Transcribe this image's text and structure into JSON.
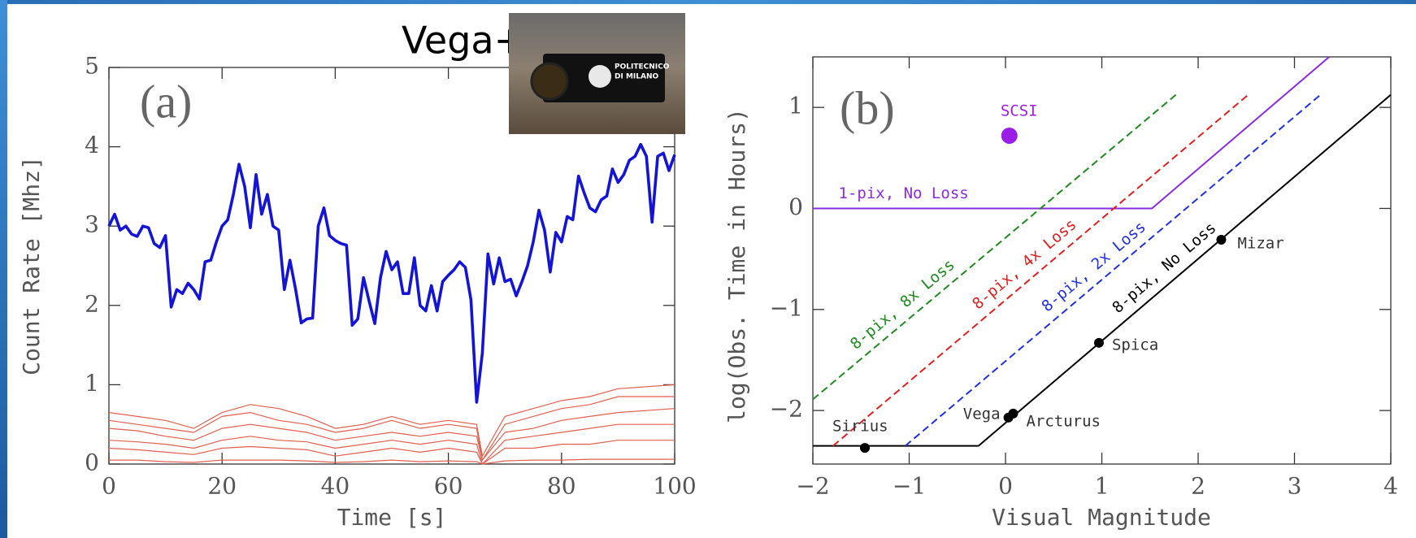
{
  "chart_data": [
    {
      "type": "line",
      "title": "Vega+",
      "panel_label": "(a)",
      "inset_text": [
        "POLITECNICO",
        "DI MILANO"
      ],
      "x_label": "Time   [s]",
      "y_label": "Count Rate   [Mhz]",
      "xlim": [
        0,
        100
      ],
      "ylim": [
        0,
        5
      ],
      "xticks": [
        0,
        20,
        40,
        60,
        80,
        100
      ],
      "yticks": [
        0,
        1,
        2,
        3,
        4,
        5
      ],
      "series": [
        {
          "color": "#1414d8",
          "x": [
            0,
            1,
            2,
            3,
            4,
            5,
            6,
            7,
            8,
            9,
            10,
            11,
            12,
            13,
            14,
            15,
            16,
            17,
            18,
            19,
            20,
            21,
            22,
            23,
            24,
            25,
            26,
            27,
            28,
            29,
            30,
            31,
            32,
            33,
            34,
            35,
            36,
            37,
            38,
            39,
            40,
            41,
            42,
            43,
            44,
            45,
            46,
            47,
            48,
            49,
            50,
            51,
            52,
            53,
            54,
            55,
            56,
            57,
            58,
            59,
            60,
            61,
            62,
            63,
            64,
            65,
            66,
            67,
            68,
            69,
            70,
            71,
            72,
            73,
            74,
            75,
            76,
            77,
            78,
            79,
            80,
            81,
            82,
            83,
            84,
            85,
            86,
            87,
            88,
            89,
            90,
            91,
            92,
            93,
            94,
            95,
            96,
            97,
            98,
            99,
            100
          ],
          "values": [
            3.0,
            3.15,
            2.95,
            3.0,
            2.9,
            2.87,
            3.0,
            2.98,
            2.78,
            2.73,
            2.88,
            1.98,
            2.2,
            2.15,
            2.28,
            2.2,
            2.08,
            2.55,
            2.57,
            2.8,
            3.0,
            3.08,
            3.4,
            3.78,
            3.5,
            2.98,
            3.65,
            3.15,
            3.4,
            3.0,
            2.95,
            2.2,
            2.57,
            2.2,
            1.78,
            1.83,
            1.84,
            3.0,
            3.23,
            2.88,
            2.82,
            2.78,
            2.76,
            1.75,
            1.83,
            2.35,
            2.05,
            1.77,
            2.35,
            2.68,
            2.45,
            2.55,
            2.15,
            2.15,
            2.6,
            2.0,
            1.93,
            2.25,
            1.93,
            2.3,
            2.38,
            2.45,
            2.55,
            2.48,
            2.07,
            0.78,
            1.4,
            2.65,
            2.27,
            2.6,
            2.3,
            2.33,
            2.12,
            2.3,
            2.5,
            2.8,
            3.2,
            2.95,
            2.42,
            2.92,
            2.8,
            3.12,
            3.08,
            3.63,
            3.42,
            3.23,
            3.18,
            3.33,
            3.38,
            3.72,
            3.55,
            3.65,
            3.83,
            3.88,
            4.03,
            3.88,
            3.05,
            3.88,
            3.92,
            3.7,
            3.9
          ]
        },
        {
          "color": "#e0604f",
          "x": [
            0,
            5,
            10,
            15,
            20,
            25,
            30,
            35,
            40,
            45,
            50,
            55,
            60,
            65,
            66,
            70,
            75,
            80,
            85,
            90,
            100
          ],
          "values": [
            0.65,
            0.6,
            0.55,
            0.45,
            0.65,
            0.75,
            0.7,
            0.6,
            0.45,
            0.5,
            0.6,
            0.5,
            0.55,
            0.5,
            0.1,
            0.6,
            0.7,
            0.8,
            0.85,
            0.95,
            1.0
          ]
        },
        {
          "color": "#e0604f",
          "x": [
            0,
            5,
            10,
            15,
            20,
            25,
            30,
            35,
            40,
            45,
            50,
            55,
            60,
            65,
            66,
            70,
            75,
            80,
            85,
            90,
            100
          ],
          "values": [
            0.55,
            0.5,
            0.45,
            0.4,
            0.6,
            0.65,
            0.55,
            0.5,
            0.4,
            0.45,
            0.55,
            0.45,
            0.5,
            0.45,
            0.05,
            0.5,
            0.6,
            0.7,
            0.75,
            0.85,
            0.85
          ]
        },
        {
          "color": "#e0604f",
          "x": [
            0,
            5,
            10,
            15,
            20,
            25,
            30,
            35,
            40,
            45,
            50,
            55,
            60,
            65,
            66,
            70,
            75,
            80,
            85,
            90,
            100
          ],
          "values": [
            0.45,
            0.42,
            0.35,
            0.3,
            0.45,
            0.5,
            0.45,
            0.4,
            0.3,
            0.35,
            0.4,
            0.35,
            0.4,
            0.35,
            0.05,
            0.4,
            0.45,
            0.55,
            0.6,
            0.65,
            0.7
          ]
        },
        {
          "color": "#e0604f",
          "x": [
            0,
            5,
            10,
            15,
            20,
            25,
            30,
            35,
            40,
            45,
            50,
            55,
            60,
            65,
            66,
            70,
            75,
            80,
            85,
            90,
            100
          ],
          "values": [
            0.3,
            0.28,
            0.25,
            0.2,
            0.3,
            0.35,
            0.3,
            0.28,
            0.2,
            0.25,
            0.3,
            0.25,
            0.3,
            0.25,
            0.0,
            0.3,
            0.35,
            0.4,
            0.45,
            0.5,
            0.5
          ]
        },
        {
          "color": "#e0604f",
          "x": [
            0,
            5,
            10,
            15,
            20,
            25,
            30,
            35,
            40,
            45,
            50,
            55,
            60,
            65,
            66,
            70,
            75,
            80,
            85,
            90,
            100
          ],
          "values": [
            0.2,
            0.18,
            0.15,
            0.12,
            0.2,
            0.22,
            0.2,
            0.18,
            0.1,
            0.15,
            0.2,
            0.15,
            0.2,
            0.15,
            0.0,
            0.2,
            0.2,
            0.25,
            0.25,
            0.3,
            0.3
          ]
        },
        {
          "color": "#e0604f",
          "x": [
            0,
            5,
            10,
            15,
            20,
            25,
            30,
            35,
            40,
            45,
            50,
            55,
            60,
            65,
            66,
            70,
            75,
            80,
            85,
            90,
            100
          ],
          "values": [
            0.05,
            0.05,
            0.03,
            0.02,
            0.05,
            0.05,
            0.05,
            0.04,
            0.02,
            0.03,
            0.05,
            0.03,
            0.04,
            0.03,
            0.0,
            0.04,
            0.05,
            0.05,
            0.06,
            0.06,
            0.06
          ]
        }
      ]
    },
    {
      "type": "line",
      "panel_label": "(b)",
      "x_label": "Visual Magnitude",
      "y_label": "log(Obs. Time in Hours)",
      "xlim": [
        -2,
        4
      ],
      "ylim": [
        -2.53,
        1.5
      ],
      "xticks": [
        {
          "value": -2,
          "label": "−2"
        },
        {
          "value": -1,
          "label": "−1"
        },
        0,
        1,
        2,
        3,
        4
      ],
      "yticks": [
        {
          "value": -2,
          "label": "−2"
        },
        {
          "value": -1,
          "label": "−1"
        },
        0,
        1
      ],
      "series": [
        {
          "name": "8-pix, 8x Loss",
          "color": "#1f8a1f",
          "dashed": true,
          "x": [
            -2,
            1.77
          ],
          "values": [
            -1.89,
            1.125
          ]
        },
        {
          "name": "8-pix, 4x Loss",
          "color": "#e02020",
          "dashed": true,
          "x": [
            -1.79,
            2.52
          ],
          "values": [
            -2.35,
            1.125
          ]
        },
        {
          "name": "8-pix, 2x Loss",
          "color": "#2030e0",
          "dashed": true,
          "x": [
            -1.04,
            3.27
          ],
          "values": [
            -2.35,
            1.125
          ]
        },
        {
          "name": "8-pix, No Loss",
          "color": "#000000",
          "dashed": false,
          "x": [
            -2,
            -0.28,
            4
          ],
          "values": [
            -2.35,
            -2.35,
            1.125
          ]
        },
        {
          "name": "1-pix, No Loss",
          "color": "#8a2be2",
          "dashed": false,
          "x": [
            -2,
            1.52,
            3.36
          ],
          "values": [
            0,
            0,
            1.5
          ]
        }
      ],
      "markers": [
        {
          "label": "Sirius",
          "x": -1.46,
          "y": -2.37,
          "color": "#000000"
        },
        {
          "label": "Vega",
          "x": 0.03,
          "y": -2.07,
          "color": "#000000"
        },
        {
          "label": "Arcturus",
          "x": 0.08,
          "y": -2.03,
          "color": "#000000"
        },
        {
          "label": "Spica",
          "x": 0.97,
          "y": -1.33,
          "color": "#000000"
        },
        {
          "label": "Mizar",
          "x": 2.24,
          "y": -0.31,
          "color": "#000000"
        },
        {
          "label": "SCSI",
          "x": 0.04,
          "y": 0.72,
          "color": "#9a1ee6"
        }
      ]
    }
  ]
}
